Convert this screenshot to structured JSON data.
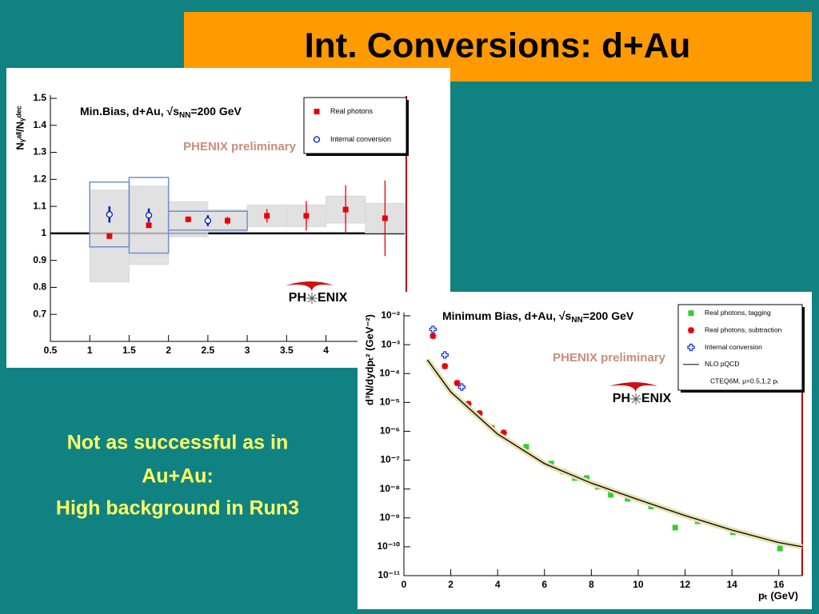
{
  "title": "Int. Conversions: d+Au",
  "caption": [
    "Not as successful as in",
    "Au+Au:",
    "High background in Run3"
  ],
  "chart_data": [
    {
      "type": "scatter",
      "y_label": "Nᵧᵃˡˡ/Nᵧᵈᵉᶜ",
      "annotation": [
        "Min.Bias, d+Au, √s",
        "NN",
        "=200 GeV"
      ],
      "preliminary": "PHENIX preliminary",
      "logo": [
        "PH",
        "ENIX"
      ],
      "xlim": [
        0.5,
        5
      ],
      "ylim": [
        0.6,
        1.5
      ],
      "xticks": [
        0.5,
        1,
        1.5,
        2,
        2.5,
        3,
        3.5,
        4
      ],
      "yticks": [
        0.7,
        0.8,
        0.9,
        1,
        1.1,
        1.2,
        1.3,
        1.4,
        1.5
      ],
      "reference_line": 1,
      "legend": "top-right",
      "series": [
        {
          "name": "Real photons",
          "color": "#e8000b",
          "marker": "square",
          "sys_color": "#d9d9d9",
          "x": [
            1.25,
            1.75,
            2.25,
            2.75,
            3.25,
            3.75,
            4.25,
            4.75
          ],
          "values": [
            0.99,
            1.03,
            1.052,
            1.047,
            1.065,
            1.065,
            1.088,
            1.056
          ],
          "errors": [
            0.005,
            0.01,
            0.01,
            0.015,
            0.025,
            0.055,
            0.09,
            0.14
          ],
          "sys": [
            0.17,
            0.145,
            0.065,
            0.04,
            0.04,
            0.04,
            0.05,
            0.055
          ]
        },
        {
          "name": "Internal conversion",
          "color": "#0018c8",
          "marker": "circle",
          "sys_color": "#7090d0",
          "x": [
            1.25,
            1.75,
            2.5
          ],
          "values": [
            1.07,
            1.067,
            1.047
          ],
          "errors": [
            0.03,
            0.025,
            0.02
          ],
          "sys": [
            0.12,
            0.14,
            0.035
          ]
        }
      ]
    },
    {
      "type": "scatter",
      "y_label": "d³N/dydpₜ² (GeV⁻²)",
      "x_label": "pₜ (GeV)",
      "annotation": [
        "Minimum Bias, d+Au, √s",
        "NN",
        "=200 GeV"
      ],
      "preliminary": "PHENIX preliminary",
      "logo": [
        "PH",
        "ENIX"
      ],
      "xlim": [
        0,
        17
      ],
      "ylim": [
        1e-11,
        0.01
      ],
      "log_y": true,
      "xticks": [
        0,
        2,
        4,
        6,
        8,
        10,
        12,
        14,
        16
      ],
      "yticks": [
        {
          "value": 1e-11,
          "label": "10⁻¹¹"
        },
        {
          "value": 1e-10,
          "label": "10⁻¹⁰"
        },
        {
          "value": 1e-09,
          "label": "10⁻⁹"
        },
        {
          "value": 1e-08,
          "label": "10⁻⁸"
        },
        {
          "value": 1e-07,
          "label": "10⁻⁷"
        },
        {
          "value": 1e-06,
          "label": "10⁻⁶"
        },
        {
          "value": 1e-05,
          "label": "10⁻⁵"
        },
        {
          "value": 0.0001,
          "label": "10⁻⁴"
        },
        {
          "value": 0.001,
          "label": "10⁻³"
        },
        {
          "value": 0.01,
          "label": "10⁻²"
        }
      ],
      "legend": "top-right",
      "legend_note": "CTEQ6M, μ=0.5,1,2 pₜ",
      "series": [
        {
          "name": "Real photons, tagging",
          "color": "#33cc33",
          "marker": "square",
          "x": [
            5.22,
            6.29,
            6.8,
            7.3,
            7.8,
            8.28,
            8.83,
            9.55,
            10.55,
            11.58,
            12.54,
            14.05,
            16.05
          ],
          "values": [
            2.9e-07,
            7.6e-08,
            4e-08,
            2.4e-08,
            2.4e-08,
            1.2e-08,
            6.3e-09,
            4.6e-09,
            2.5e-09,
            4.6e-10,
            7.6e-10,
            3.2e-10,
            8.7e-11
          ]
        },
        {
          "name": "Real photons, subtraction",
          "color": "#e8000b",
          "marker": "star",
          "x": [
            1.24,
            1.75,
            2.27,
            2.75,
            3.23,
            3.75,
            4.26
          ],
          "values": [
            0.002,
            0.00018,
            4.7e-05,
            8.9e-06,
            4.2e-06,
            1.3e-06,
            9e-07
          ]
        },
        {
          "name": "Internal conversion",
          "color": "#1030e0",
          "marker": "cross",
          "x": [
            1.24,
            1.75,
            2.47
          ],
          "values": [
            0.0034,
            0.00044,
            3.4e-05
          ]
        },
        {
          "name": "NLO pQCD",
          "color": "#000000",
          "marker": "line",
          "x": [
            1,
            2,
            4,
            6,
            8,
            10,
            12,
            14,
            16,
            17
          ],
          "values": [
            0.0003,
            2.3e-05,
            8e-07,
            7.6e-08,
            1.6e-08,
            4.3e-09,
            1.2e-09,
            3.8e-10,
            1.4e-10,
            1e-10
          ]
        }
      ]
    }
  ]
}
